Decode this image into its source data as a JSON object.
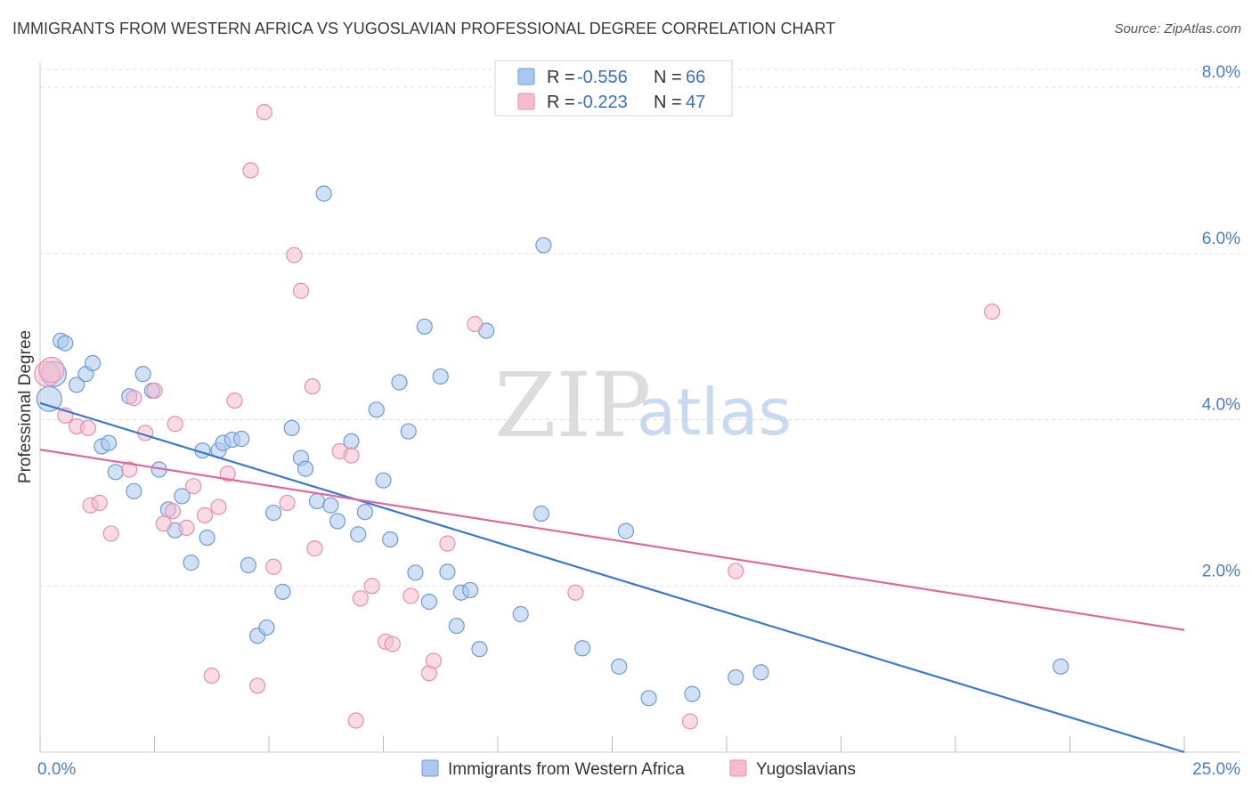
{
  "title": "IMMIGRANTS FROM WESTERN AFRICA VS YUGOSLAVIAN PROFESSIONAL DEGREE CORRELATION CHART",
  "source": "Source: ZipAtlas.com",
  "watermark": {
    "zip": "ZIP",
    "atlas": "atlas"
  },
  "colors": {
    "blue_fill": "#aac8ef",
    "blue_stroke": "#6f9ad6",
    "blue_line": "#3b78d0",
    "pink_fill": "#f6bccd",
    "pink_stroke": "#e890ab",
    "pink_line": "#e0689a",
    "grid": "#dddddd",
    "tick_label": "#4a7cc7"
  },
  "legend": {
    "rows": [
      {
        "r_label": "R = ",
        "r_value": "-0.556",
        "n_label": "N = ",
        "n_value": "66",
        "series": "blue"
      },
      {
        "r_label": "R = ",
        "r_value": "-0.223",
        "n_label": "N = ",
        "n_value": "47",
        "series": "pink"
      }
    ]
  },
  "chart_data": {
    "type": "scatter",
    "ylabel": "Professional Degree",
    "xlim": [
      0,
      25
    ],
    "ylim": [
      0,
      8.3
    ],
    "x_tick_labels": [
      "0.0%",
      "25.0%"
    ],
    "y_ticks": [
      {
        "value": 2,
        "label": "2.0%"
      },
      {
        "value": 4,
        "label": "4.0%"
      },
      {
        "value": 6,
        "label": "6.0%"
      },
      {
        "value": 8,
        "label": "8.0%"
      }
    ],
    "grid": true,
    "series": [
      {
        "name": "Immigrants from Western Africa",
        "color": "blue",
        "trend": {
          "x0": 0,
          "y0": 4.2,
          "x1": 25,
          "y1": 0
        },
        "points": [
          [
            0.2,
            4.25
          ],
          [
            0.3,
            4.55
          ],
          [
            0.45,
            4.95
          ],
          [
            0.55,
            4.92
          ],
          [
            0.8,
            4.42
          ],
          [
            1.0,
            4.55
          ],
          [
            1.15,
            4.68
          ],
          [
            1.35,
            3.68
          ],
          [
            1.5,
            3.72
          ],
          [
            1.65,
            3.37
          ],
          [
            1.95,
            4.28
          ],
          [
            2.05,
            3.14
          ],
          [
            2.25,
            4.55
          ],
          [
            2.45,
            4.35
          ],
          [
            2.6,
            3.4
          ],
          [
            2.8,
            2.92
          ],
          [
            2.95,
            2.67
          ],
          [
            3.1,
            3.08
          ],
          [
            3.3,
            2.28
          ],
          [
            3.55,
            3.63
          ],
          [
            3.65,
            2.58
          ],
          [
            3.9,
            3.63
          ],
          [
            4.0,
            3.72
          ],
          [
            4.2,
            3.76
          ],
          [
            4.4,
            3.77
          ],
          [
            4.55,
            2.25
          ],
          [
            4.75,
            1.4
          ],
          [
            4.95,
            1.5
          ],
          [
            5.1,
            2.88
          ],
          [
            5.3,
            1.93
          ],
          [
            5.5,
            3.9
          ],
          [
            5.7,
            3.54
          ],
          [
            5.8,
            3.41
          ],
          [
            6.05,
            3.02
          ],
          [
            6.2,
            6.72
          ],
          [
            6.35,
            2.97
          ],
          [
            6.5,
            2.78
          ],
          [
            6.8,
            3.74
          ],
          [
            6.95,
            2.62
          ],
          [
            7.1,
            2.89
          ],
          [
            7.35,
            4.12
          ],
          [
            7.5,
            3.27
          ],
          [
            7.65,
            2.56
          ],
          [
            7.85,
            4.45
          ],
          [
            8.05,
            3.86
          ],
          [
            8.2,
            2.16
          ],
          [
            8.4,
            5.12
          ],
          [
            8.5,
            1.81
          ],
          [
            8.75,
            4.52
          ],
          [
            8.9,
            2.17
          ],
          [
            9.1,
            1.52
          ],
          [
            9.2,
            1.92
          ],
          [
            9.4,
            1.95
          ],
          [
            9.6,
            1.24
          ],
          [
            9.75,
            5.07
          ],
          [
            10.5,
            1.66
          ],
          [
            11.0,
            6.1
          ],
          [
            10.95,
            2.87
          ],
          [
            11.85,
            1.25
          ],
          [
            12.65,
            1.03
          ],
          [
            12.8,
            2.66
          ],
          [
            13.3,
            0.65
          ],
          [
            14.25,
            0.7
          ],
          [
            15.2,
            0.9
          ],
          [
            15.75,
            0.96
          ],
          [
            22.3,
            1.03
          ]
        ]
      },
      {
        "name": "Yugoslavians",
        "color": "pink",
        "trend": {
          "x0": 0,
          "y0": 3.64,
          "x1": 25,
          "y1": 1.47
        },
        "points": [
          [
            0.15,
            4.55
          ],
          [
            0.55,
            4.05
          ],
          [
            0.8,
            3.92
          ],
          [
            1.05,
            3.9
          ],
          [
            1.1,
            2.97
          ],
          [
            1.3,
            3.0
          ],
          [
            1.55,
            2.63
          ],
          [
            1.95,
            3.4
          ],
          [
            2.05,
            4.26
          ],
          [
            2.3,
            3.84
          ],
          [
            2.5,
            4.35
          ],
          [
            2.7,
            2.75
          ],
          [
            2.9,
            2.9
          ],
          [
            2.95,
            3.95
          ],
          [
            3.2,
            2.7
          ],
          [
            3.35,
            3.2
          ],
          [
            3.6,
            2.85
          ],
          [
            3.75,
            0.92
          ],
          [
            3.9,
            2.95
          ],
          [
            4.1,
            3.35
          ],
          [
            4.25,
            4.23
          ],
          [
            4.6,
            7.0
          ],
          [
            4.75,
            0.8
          ],
          [
            4.9,
            7.7
          ],
          [
            5.1,
            2.23
          ],
          [
            5.4,
            3.0
          ],
          [
            5.55,
            5.98
          ],
          [
            5.7,
            5.55
          ],
          [
            5.95,
            4.4
          ],
          [
            6.0,
            2.45
          ],
          [
            6.55,
            3.62
          ],
          [
            6.8,
            3.57
          ],
          [
            6.9,
            0.38
          ],
          [
            7.0,
            1.85
          ],
          [
            7.25,
            2.0
          ],
          [
            7.55,
            1.33
          ],
          [
            7.7,
            1.3
          ],
          [
            8.1,
            1.88
          ],
          [
            8.5,
            0.95
          ],
          [
            8.6,
            1.1
          ],
          [
            8.9,
            2.51
          ],
          [
            9.5,
            5.15
          ],
          [
            11.7,
            1.92
          ],
          [
            14.2,
            0.37
          ],
          [
            15.2,
            2.18
          ],
          [
            20.8,
            5.3
          ],
          [
            0.25,
            4.6
          ]
        ]
      }
    ]
  }
}
